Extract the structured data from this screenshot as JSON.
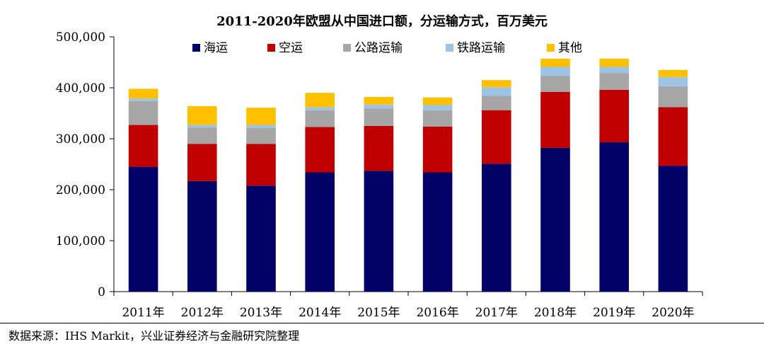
{
  "chart_data": {
    "type": "bar",
    "stacked": true,
    "title": "2011-2020年欧盟从中国进口额，分运输方式，百万美元",
    "categories": [
      "2011年",
      "2012年",
      "2013年",
      "2014年",
      "2015年",
      "2016年",
      "2017年",
      "2018年",
      "2019年",
      "2020年"
    ],
    "ylim": [
      0,
      500000
    ],
    "yticks": [
      0,
      100000,
      200000,
      300000,
      400000,
      500000
    ],
    "ytick_labels": [
      "0",
      "100,000",
      "200,000",
      "300,000",
      "400,000",
      "500,000"
    ],
    "grid": false,
    "legend_position": "top",
    "series": [
      {
        "name": "海运",
        "color": "#000066",
        "values": [
          245000,
          217000,
          208000,
          234000,
          237000,
          234000,
          251000,
          282000,
          293000,
          247000
        ]
      },
      {
        "name": "空运",
        "color": "#c00000",
        "values": [
          82000,
          73000,
          82000,
          89000,
          88000,
          90000,
          105000,
          110000,
          103000,
          115000
        ]
      },
      {
        "name": "公路运输",
        "color": "#a6a6a6",
        "values": [
          47000,
          32000,
          31000,
          33000,
          34000,
          32000,
          28000,
          32000,
          33000,
          41000
        ]
      },
      {
        "name": "铁路运输",
        "color": "#9dc3e6",
        "values": [
          5000,
          5000,
          6000,
          6000,
          8000,
          10000,
          17000,
          17000,
          12000,
          18000
        ]
      },
      {
        "name": "其他",
        "color": "#ffc000",
        "values": [
          19000,
          37000,
          34000,
          28000,
          15000,
          15000,
          14000,
          16000,
          16000,
          14000
        ]
      }
    ]
  },
  "source_note": "数据来源：IHS Markit，兴业证券经济与金融研究院整理"
}
